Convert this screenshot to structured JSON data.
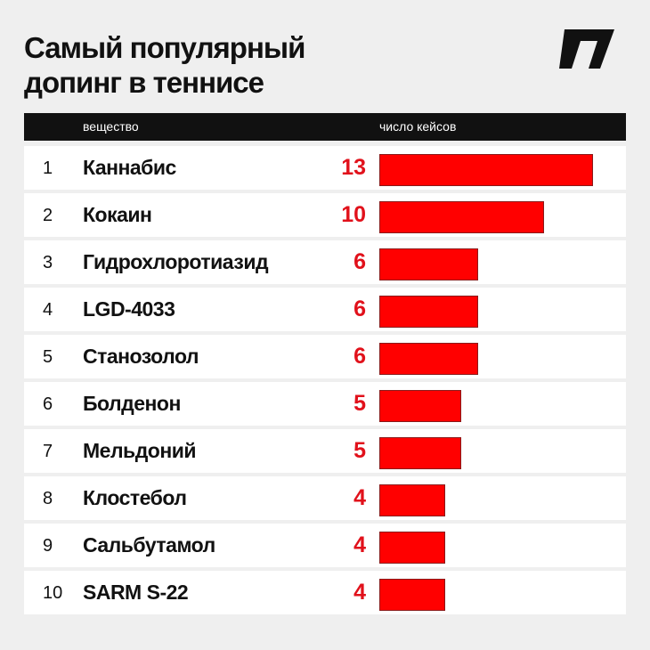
{
  "title_lines": [
    "Самый популярный",
    "допинг в теннисе"
  ],
  "logo": {
    "name": "brand-logo-icon",
    "color": "#111111"
  },
  "header": {
    "substance_label": "вещество",
    "cases_label": "число кейсов"
  },
  "colors": {
    "accent": "#ff0000",
    "value_text": "#e1111b",
    "header_bg": "#111111",
    "page_bg": "#efefef"
  },
  "chart_data": {
    "type": "bar",
    "orientation": "horizontal",
    "title": "Самый популярный допинг в теннисе",
    "xlabel": "число кейсов",
    "ylabel": "вещество",
    "xlim": [
      0,
      13
    ],
    "ranks": [
      "1",
      "2",
      "3",
      "4",
      "5",
      "6",
      "7",
      "8",
      "9",
      "10"
    ],
    "categories": [
      "Каннабис",
      "Кокаин",
      "Гидрохлоротиазид",
      "LGD-4033",
      "Станозолол",
      "Болденон",
      "Мельдоний",
      "Клостебол",
      "Сальбутамол",
      "SARM S-22"
    ],
    "values": [
      13,
      10,
      6,
      6,
      6,
      5,
      5,
      4,
      4,
      4
    ]
  }
}
